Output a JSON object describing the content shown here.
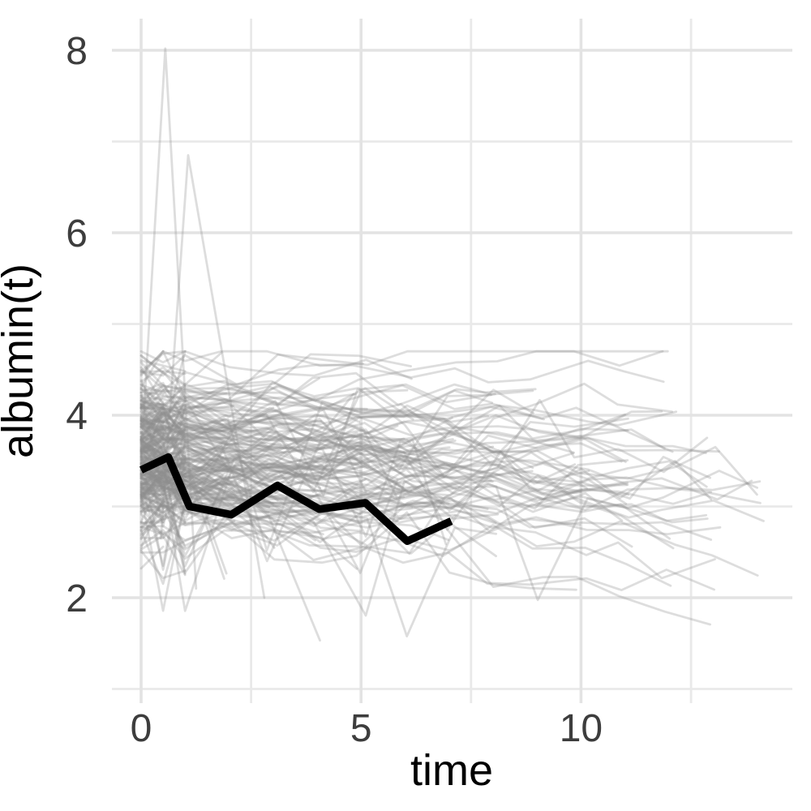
{
  "chart_data": {
    "type": "line",
    "subtype": "spaghetti-plot",
    "title": "",
    "xlabel": "time",
    "ylabel": "albumin(t)",
    "x_ticks": [
      0,
      5,
      10
    ],
    "y_ticks": [
      2,
      4,
      6,
      8
    ],
    "x_minor_ticks": [
      2.5,
      7.5,
      12.5
    ],
    "y_minor_ticks": [
      1,
      3,
      5,
      7
    ],
    "x_domain": [
      -0.663,
      14.803
    ],
    "y_domain": [
      0.844,
      8.347
    ],
    "grid": "major+minor, light gray on white, no axis lines, no legend",
    "legend_position": "none",
    "colors": {
      "background": "#ffffff",
      "grid_major": "#e3e3e3",
      "grid_minor": "#e9e9e9",
      "tick_label": "#3d3d3d",
      "axis_title": "#000000"
    },
    "highlight_series": {
      "name": "highlighted-patient",
      "color": "#000000",
      "line_width": 9.5,
      "points": [
        [
          0,
          3.4
        ],
        [
          0.62,
          3.54
        ],
        [
          1.1,
          3.0
        ],
        [
          2.05,
          2.91
        ],
        [
          3.1,
          3.23
        ],
        [
          4.05,
          2.97
        ],
        [
          5.1,
          3.04
        ],
        [
          6.05,
          2.62
        ],
        [
          7.05,
          2.84
        ]
      ]
    },
    "outlier_series": [
      {
        "name": "spike-outlier-1",
        "points": [
          [
            0,
            3.5
          ],
          [
            0.55,
            8.02
          ],
          [
            1.25,
            2.1
          ]
        ]
      },
      {
        "name": "spike-outlier-2",
        "points": [
          [
            0.45,
            2.65
          ],
          [
            1.07,
            6.85
          ],
          [
            2.8,
            2.0
          ]
        ]
      }
    ],
    "background_ensemble": {
      "description": "Approximately 300 individual patient albumin trajectories over follow-up time (gray translucent spaghetti lines). Dense band between albumin 2.7 and 4.3 at time 0, slowly declining mean, thinning out after time 10, max follow-up about 14.4.",
      "n_subjects": 300,
      "color": "#8f8f8f",
      "opacity": 0.3,
      "line_width": 2.8,
      "value_clip": [
        1.18,
        4.7
      ],
      "baseline_mean": 3.62,
      "baseline_sd": 0.42,
      "slope_mean": -0.02,
      "slope_sd": 0.042,
      "visit_noise_sd": 0.14,
      "max_follow_up": 14.4,
      "visit_schedule": "0, 0.5, 1, then yearly with jitter",
      "seed": 42
    }
  }
}
